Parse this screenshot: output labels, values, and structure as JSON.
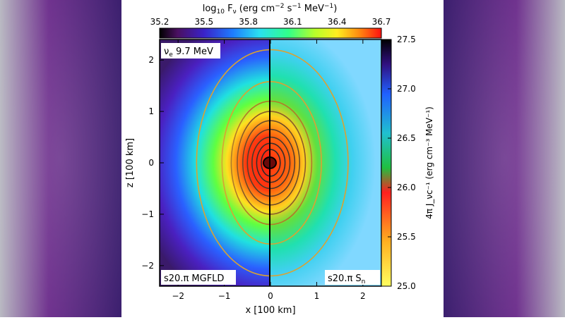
{
  "chart_data": {
    "type": "heatmap",
    "top_colorbar": {
      "label_parts": [
        "log",
        "10",
        " F",
        "ν",
        " (erg cm",
        "−2",
        " s",
        "−1",
        " MeV",
        "−1",
        ")"
      ],
      "ticks": [
        "35.2",
        "35.5",
        "35.8",
        "36.1",
        "36.4",
        "36.7"
      ],
      "range": [
        35.2,
        36.7
      ]
    },
    "right_colorbar": {
      "label": "4π J_νc⁻¹ (erg cm⁻³ MeV⁻¹)",
      "ticks": [
        "25.0",
        "25.5",
        "26.0",
        "26.5",
        "27.0",
        "27.5"
      ],
      "range": [
        25.0,
        27.5
      ]
    },
    "xlabel": "x [100 km]",
    "ylabel": "z [100 km]",
    "x_ticks": [
      "−2",
      "−1",
      "0",
      "1",
      "2"
    ],
    "y_ticks": [
      "2",
      "1",
      "0",
      "−1",
      "−2"
    ],
    "xlim": [
      -2.4,
      2.4
    ],
    "ylim": [
      -2.4,
      2.4
    ],
    "panel_label_top_left": {
      "main": "ν",
      "sub": "e",
      "rest": " 9.7 MeV"
    },
    "left_panel_label": "s20.π MGFLD",
    "right_panel_label": {
      "main": "s20.π S",
      "sub": "n"
    },
    "contours": [
      {
        "a": 1.6,
        "b": 2.2,
        "color": "#d9a233"
      },
      {
        "a": 1.05,
        "b": 1.58,
        "color": "#d9a233"
      },
      {
        "a": 0.85,
        "b": 1.2,
        "color": "#b07a2a"
      },
      {
        "a": 0.72,
        "b": 1.0,
        "color": "#8a5a2a"
      },
      {
        "a": 0.6,
        "b": 0.82,
        "color": "#6b4a2a"
      },
      {
        "a": 0.5,
        "b": 0.65,
        "color": "#5a3e2a"
      },
      {
        "a": 0.4,
        "b": 0.5,
        "color": "#4a3a2a"
      },
      {
        "a": 0.3,
        "b": 0.38,
        "color": "#3a2f2a"
      },
      {
        "a": 0.2,
        "b": 0.26,
        "color": "#2a2a2a"
      }
    ]
  }
}
